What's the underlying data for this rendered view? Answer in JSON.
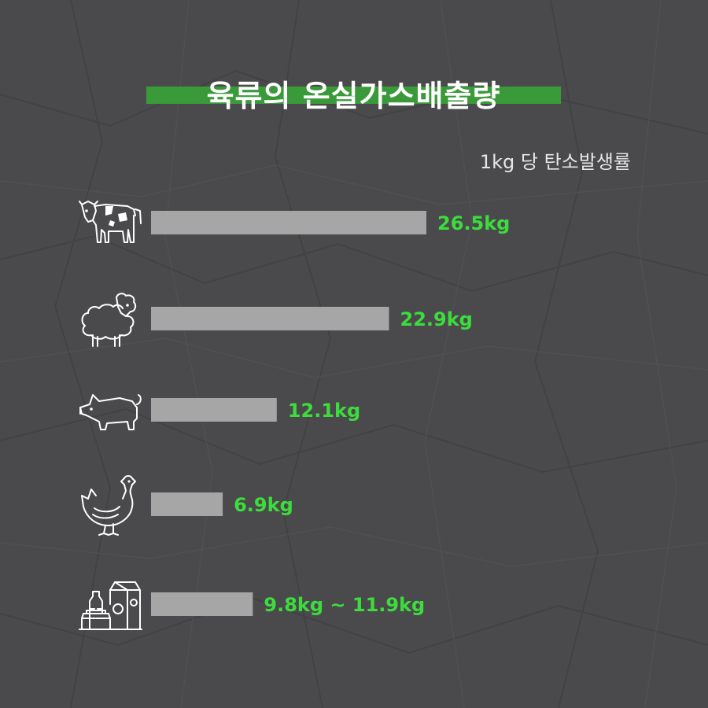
{
  "page": {
    "title": "육류의 온실가스배출량",
    "subtitle": "1kg 당 탄소발생률"
  },
  "colors": {
    "background": "#4a4a4c",
    "title_band": "#3a9a3a",
    "bar": "#a6a6a6",
    "value_text": "#3ddc3d"
  },
  "chart_data": {
    "type": "bar",
    "orientation": "horizontal",
    "categories": [
      "cow-icon",
      "sheep-icon",
      "pig-icon",
      "chicken-icon",
      "dairy-icon"
    ],
    "values": [
      26.5,
      22.9,
      12.1,
      6.9,
      9.8
    ],
    "value_labels": [
      "26.5kg",
      "22.9kg",
      "12.1kg",
      "6.9kg",
      "9.8kg ~ 11.9kg"
    ],
    "title": "육류의 온실가스배출량",
    "subtitle": "1kg 당 탄소발생률",
    "unit": "kg",
    "xlim": [
      0,
      26.5
    ],
    "grid": false,
    "legend": "none"
  }
}
